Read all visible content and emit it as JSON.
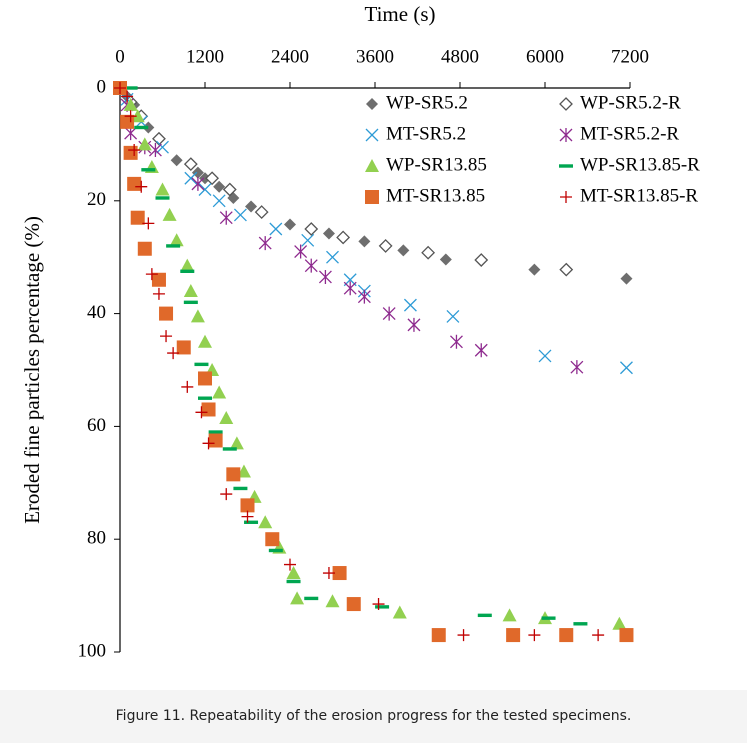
{
  "chart_data": {
    "type": "scatter",
    "x_label": "Time (s)",
    "y_label": "Eroded fine particles percentage (%)",
    "x_axis_position": "top",
    "y_inverted": true,
    "xlim": [
      0,
      7200
    ],
    "xticks": [
      0,
      1200,
      2400,
      3600,
      4800,
      6000,
      7200
    ],
    "ylim": [
      0,
      100
    ],
    "yticks": [
      0,
      20,
      40,
      60,
      80,
      100
    ],
    "legend_position": "upper right",
    "series": [
      {
        "name": "WP-SR5.2",
        "color": "#6e6e6e",
        "marker": "diamond",
        "x": [
          0,
          100,
          200,
          400,
          800,
          1100,
          1200,
          1400,
          1600,
          1850,
          2400,
          2950,
          3450,
          4000,
          4600,
          5850,
          7150
        ],
        "values": [
          0,
          1.5,
          3,
          7,
          12.8,
          15,
          16,
          17.5,
          19.5,
          21,
          24.2,
          25.8,
          27.2,
          28.8,
          30.4,
          32.2,
          33.8
        ]
      },
      {
        "name": "WP-SR5.2-R",
        "color": "#555555",
        "marker": "open-diamond",
        "x": [
          0,
          150,
          300,
          550,
          1000,
          1300,
          1550,
          2000,
          2700,
          3150,
          3750,
          4350,
          5100,
          6300
        ],
        "values": [
          0,
          2.5,
          5,
          9,
          13.5,
          16,
          18,
          22,
          25,
          26.5,
          28,
          29.2,
          30.5,
          32.2
        ]
      },
      {
        "name": "MT-SR5.2",
        "color": "#2e9bd6",
        "marker": "x",
        "x": [
          0,
          100,
          300,
          600,
          1000,
          1200,
          1400,
          1700,
          2200,
          2650,
          3000,
          3250,
          3450,
          4100,
          4700,
          6000,
          7150
        ],
        "values": [
          0,
          2,
          6,
          10.5,
          16,
          18,
          20,
          22.5,
          25,
          27,
          30,
          34,
          36,
          38.5,
          40.5,
          47.5,
          49.6
        ]
      },
      {
        "name": "MT-SR5.2-R",
        "color": "#8e2a8e",
        "marker": "star",
        "x": [
          0,
          100,
          150,
          350,
          500,
          1100,
          1500,
          2050,
          2550,
          2700,
          2900,
          3250,
          3450,
          3800,
          4150,
          4750,
          5100,
          6450
        ],
        "values": [
          0,
          3,
          8,
          10.5,
          11,
          17,
          23,
          27.5,
          29,
          31.5,
          33.5,
          35.5,
          37,
          40,
          42,
          45,
          46.5,
          49.5
        ]
      },
      {
        "name": "WP-SR13.85",
        "color": "#92d050",
        "marker": "triangle",
        "x": [
          0,
          150,
          250,
          350,
          450,
          600,
          700,
          800,
          950,
          1000,
          1100,
          1200,
          1300,
          1400,
          1500,
          1650,
          1750,
          1900,
          2050,
          2250,
          2450,
          2500,
          3000,
          3950,
          5500,
          6000,
          7050
        ],
        "values": [
          0,
          3,
          5,
          10,
          14,
          18,
          22.5,
          27,
          31.5,
          36,
          40.5,
          45,
          50,
          54,
          58.5,
          63,
          68,
          72.5,
          77,
          81.5,
          86,
          90.5,
          91,
          93,
          93.5,
          94,
          95
        ]
      },
      {
        "name": "WP-SR13.85-R",
        "color": "#00a651",
        "marker": "dash",
        "x": [
          150,
          300,
          400,
          600,
          750,
          950,
          1000,
          1150,
          1200,
          1350,
          1550,
          1700,
          1850,
          2200,
          2450,
          2700,
          3700,
          5150,
          6050,
          6500
        ],
        "values": [
          0,
          7,
          14.5,
          19.5,
          28,
          32.5,
          38,
          49,
          55,
          61,
          64,
          71,
          77,
          82,
          87.5,
          90.5,
          92,
          93.5,
          94,
          95
        ]
      },
      {
        "name": "MT-SR13.85",
        "color": "#e0692a",
        "marker": "square",
        "x": [
          0,
          100,
          150,
          200,
          250,
          350,
          550,
          650,
          900,
          1200,
          1250,
          1350,
          1600,
          1800,
          2150,
          3100,
          3300,
          4500,
          5550,
          6300,
          7150
        ],
        "values": [
          0,
          6,
          11.5,
          17,
          23,
          28.5,
          34,
          40,
          46,
          51.5,
          57,
          62.5,
          68.5,
          74,
          80,
          86,
          91.5,
          97,
          97,
          97,
          97
        ]
      },
      {
        "name": "MT-SR13.85-R",
        "color": "#c00000",
        "marker": "plus",
        "x": [
          0,
          100,
          150,
          200,
          300,
          400,
          450,
          550,
          650,
          750,
          950,
          1150,
          1250,
          1500,
          1800,
          2400,
          2950,
          3650,
          4850,
          5850,
          6750
        ],
        "values": [
          0,
          1.5,
          5,
          11,
          17.5,
          24,
          33,
          36.5,
          44,
          47,
          53,
          57.5,
          63,
          72,
          76,
          84.5,
          86,
          91.5,
          97,
          97,
          97
        ]
      }
    ]
  },
  "caption": "Figure 11. Repeatability of the erosion progress for the tested specimens."
}
